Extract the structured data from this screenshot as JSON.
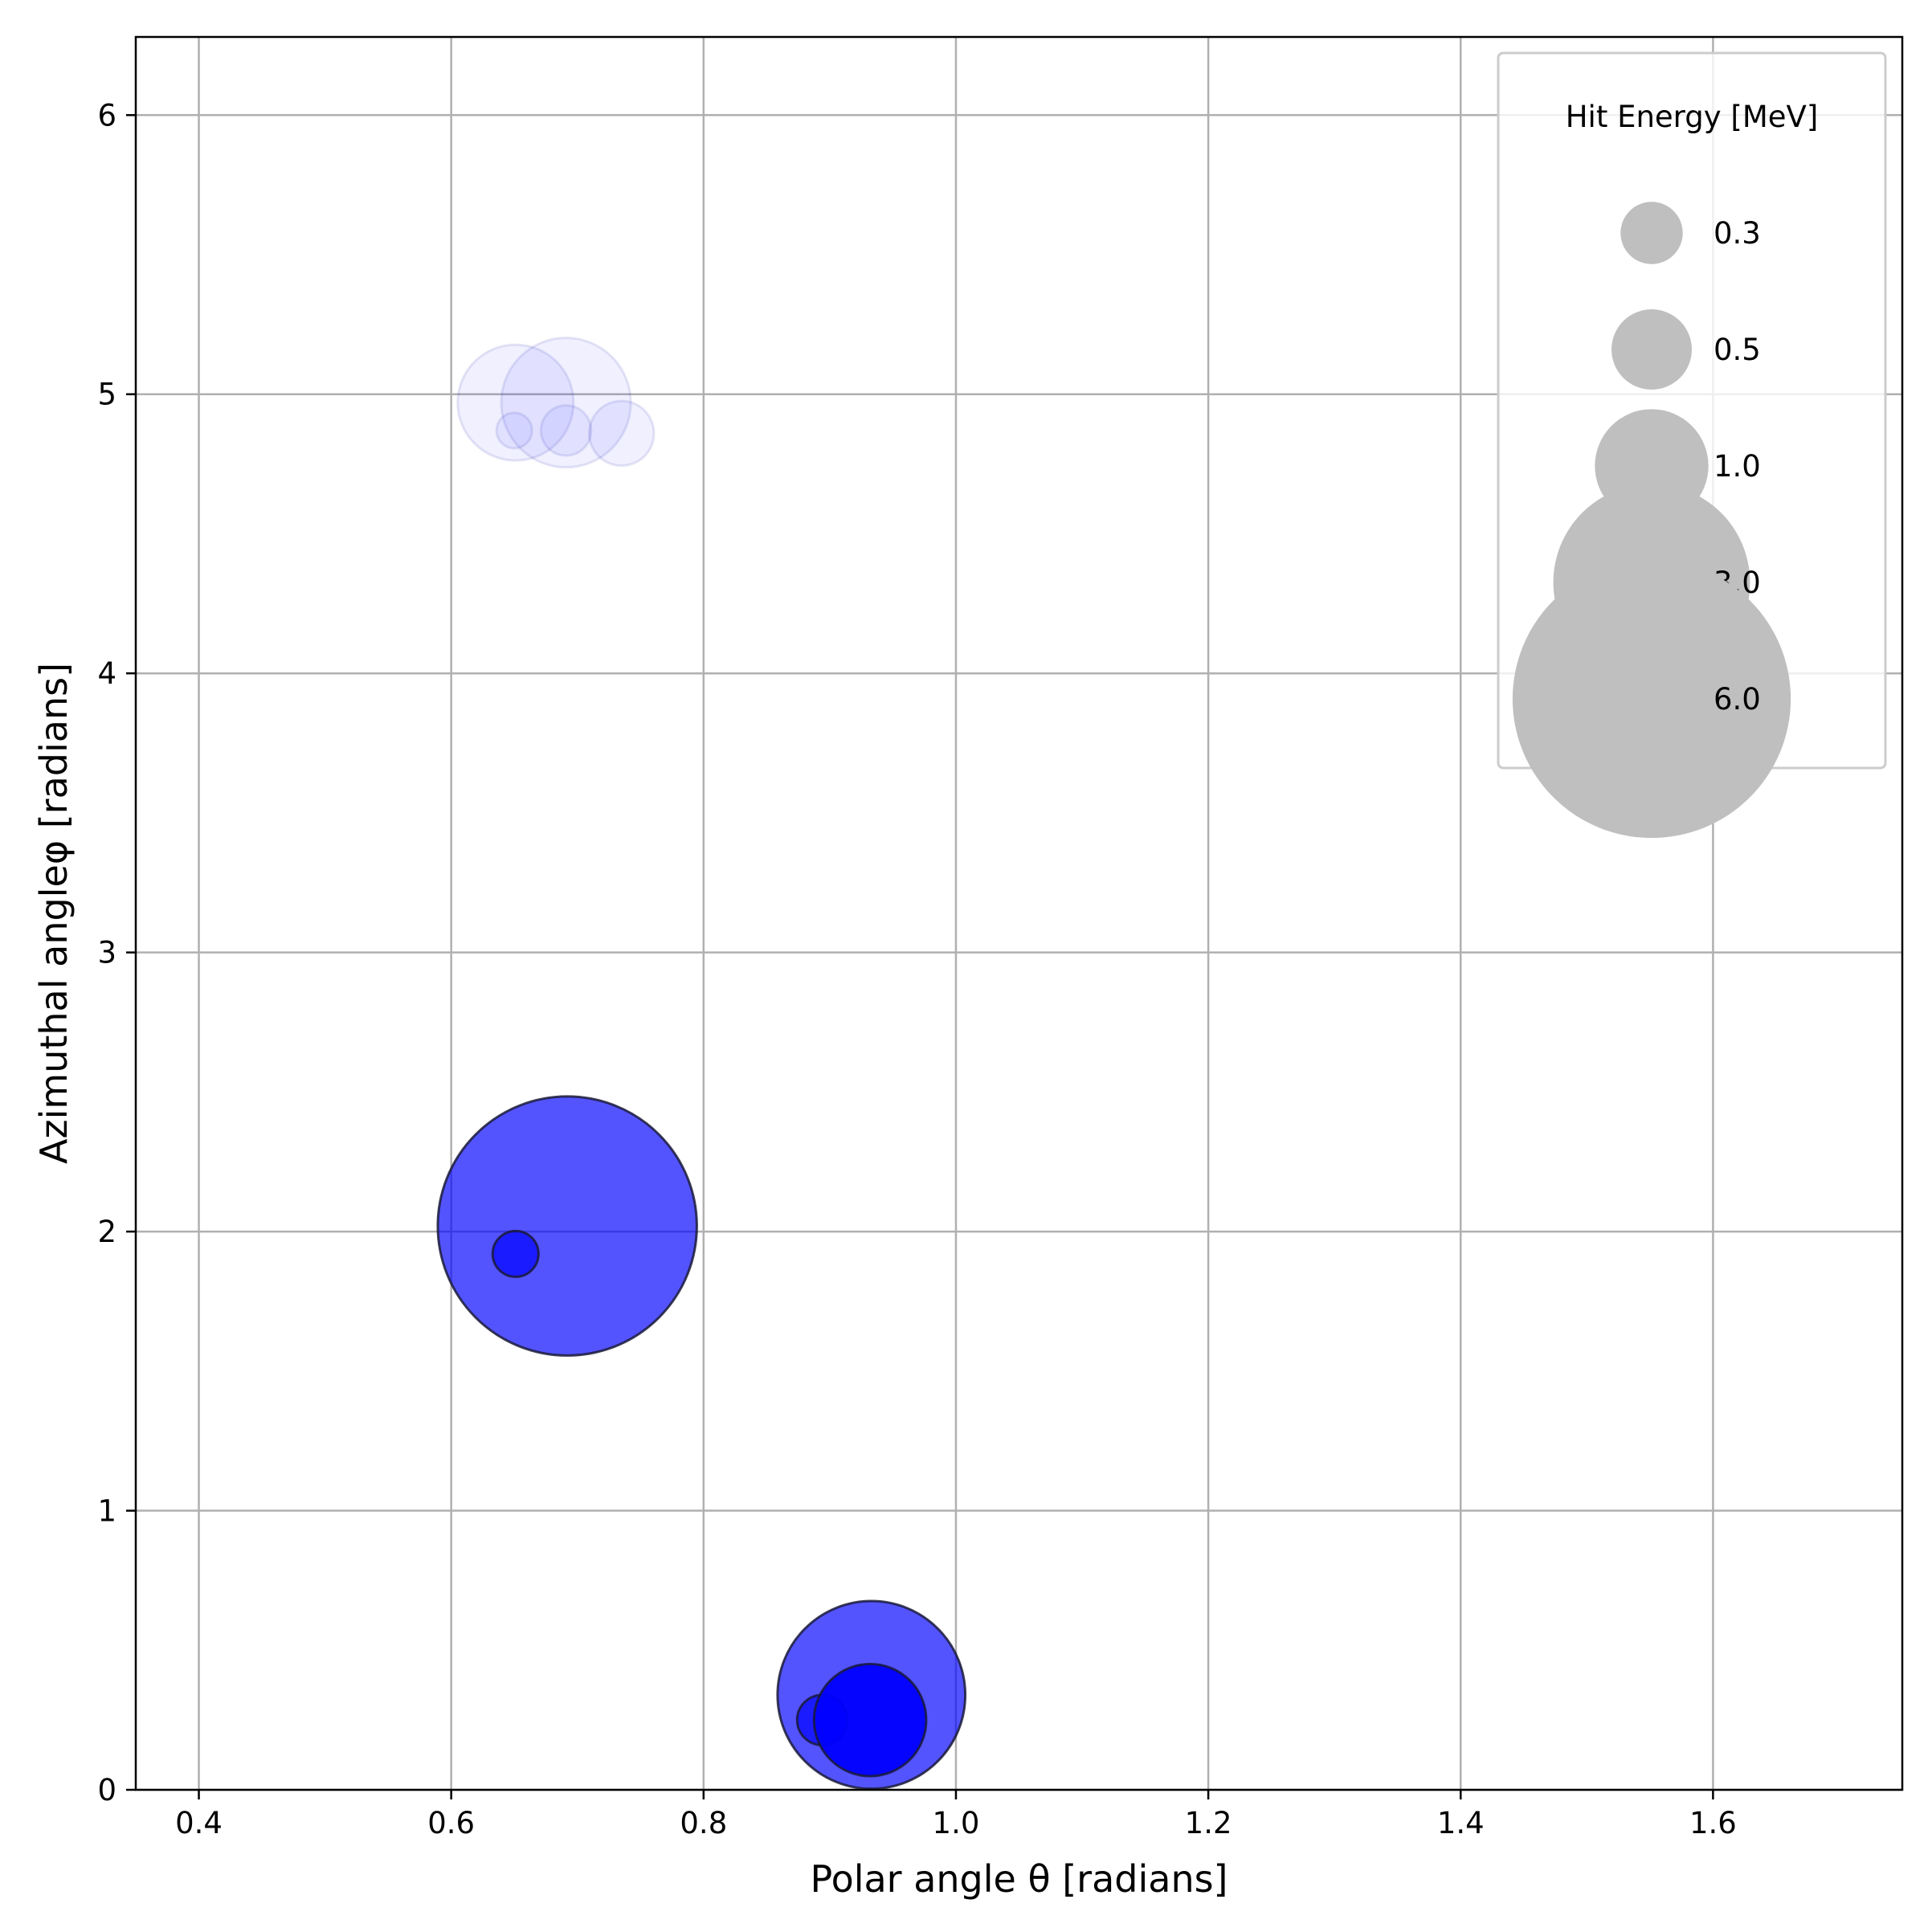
{
  "chart_data": {
    "type": "scatter",
    "title": "",
    "xlabel": "Polar angle θ [radians]",
    "ylabel": "Azimuthal angleφ [radians]",
    "xlim": [
      0.35,
      1.75
    ],
    "ylim": [
      0,
      6.28
    ],
    "xticks": [
      0.4,
      0.6,
      0.8,
      1.0,
      1.2,
      1.4,
      1.6
    ],
    "xtick_labels": [
      "0.4",
      "0.6",
      "0.8",
      "1.0",
      "1.2",
      "1.4",
      "1.6"
    ],
    "yticks": [
      0,
      1,
      2,
      3,
      4,
      5,
      6
    ],
    "ytick_labels": [
      "0",
      "1",
      "2",
      "3",
      "4",
      "5",
      "6"
    ],
    "grid": true,
    "legend": {
      "title": "Hit Energy [MeV]",
      "placement": "top-right",
      "entries": [
        {
          "label": "0.3",
          "value": 0.3
        },
        {
          "label": "0.5",
          "value": 0.5
        },
        {
          "label": "1.0",
          "value": 1.0
        },
        {
          "label": "3.0",
          "value": 3.0
        },
        {
          "label": "6.0",
          "value": 6.0
        }
      ],
      "color": "#bfbfbf"
    },
    "size_encoding": "marker area proportional to hit energy [MeV]",
    "series": [
      {
        "color": "#0000ff",
        "opacity": 0.06,
        "edge": "faint",
        "points": [
          {
            "x": 0.651,
            "y": 4.97,
            "energy": 1.6
          },
          {
            "x": 0.691,
            "y": 4.97,
            "energy": 2.0
          },
          {
            "x": 0.65,
            "y": 4.87,
            "energy": 0.15
          },
          {
            "x": 0.691,
            "y": 4.87,
            "energy": 0.3
          },
          {
            "x": 0.735,
            "y": 4.86,
            "energy": 0.5
          }
        ]
      },
      {
        "color": "#0000ff",
        "opacity": 0.67,
        "edge": "dark",
        "points": [
          {
            "x": 0.692,
            "y": 2.02,
            "energy": 8.0
          },
          {
            "x": 0.651,
            "y": 1.92,
            "energy": 0.25
          },
          {
            "x": 0.933,
            "y": 0.34,
            "energy": 4.2
          },
          {
            "x": 0.894,
            "y": 0.25,
            "energy": 0.3
          }
        ]
      },
      {
        "color": "#0000ff",
        "opacity": 0.95,
        "edge": "dark",
        "points": [
          {
            "x": 0.932,
            "y": 0.25,
            "energy": 1.5
          }
        ]
      }
    ]
  }
}
